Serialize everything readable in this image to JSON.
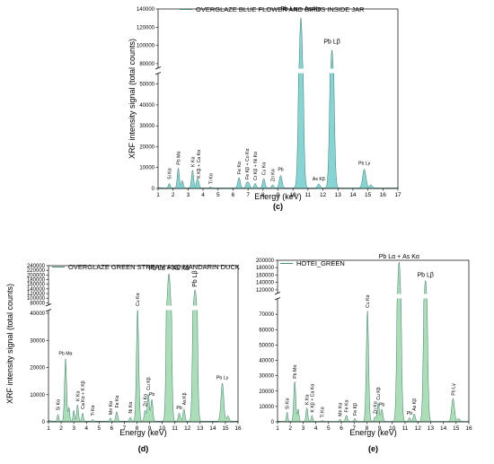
{
  "chart_data": [
    {
      "type": "area",
      "panel": "(c)",
      "legend": "OVERGLAZE BLUE FLOWER AND BIRDS INSIDE JAR",
      "xlabel": "Energy (keV)",
      "ylabel": "XRF intensity signal (total counts)",
      "color": "#5fc6c6",
      "xlim": [
        1,
        17
      ],
      "xticks": [
        1,
        2,
        3,
        4,
        5,
        6,
        7,
        8,
        9,
        10,
        11,
        12,
        13,
        14,
        15,
        16,
        17
      ],
      "ylim_lower": [
        0,
        55000
      ],
      "ylim_upper": [
        75000,
        140000
      ],
      "yticks_lower": [
        0,
        10000,
        20000,
        30000,
        40000,
        50000
      ],
      "yticks_upper": [
        80000,
        100000,
        120000,
        140000
      ],
      "peaks": [
        {
          "e": 1.75,
          "h": 2200,
          "w": 0.06
        },
        {
          "e": 2.35,
          "h": 9500,
          "w": 0.07
        },
        {
          "e": 2.62,
          "h": 3500,
          "w": 0.06
        },
        {
          "e": 3.3,
          "h": 8500,
          "w": 0.07
        },
        {
          "e": 3.6,
          "h": 3500,
          "w": 0.06
        },
        {
          "e": 3.7,
          "h": 2500,
          "w": 0.06
        },
        {
          "e": 4.5,
          "h": 500,
          "w": 0.06
        },
        {
          "e": 6.4,
          "h": 5000,
          "w": 0.08
        },
        {
          "e": 6.93,
          "h": 2500,
          "w": 0.08
        },
        {
          "e": 7.06,
          "h": 1800,
          "w": 0.07
        },
        {
          "e": 7.48,
          "h": 2200,
          "w": 0.07
        },
        {
          "e": 8.05,
          "h": 4500,
          "w": 0.08
        },
        {
          "e": 8.64,
          "h": 1500,
          "w": 0.07
        },
        {
          "e": 9.18,
          "h": 6000,
          "w": 0.09
        },
        {
          "e": 10.53,
          "h": 130000,
          "w": 0.12
        },
        {
          "e": 11.72,
          "h": 2000,
          "w": 0.09
        },
        {
          "e": 12.6,
          "h": 95000,
          "w": 0.12
        },
        {
          "e": 14.76,
          "h": 9000,
          "w": 0.11
        },
        {
          "e": 15.2,
          "h": 1500,
          "w": 0.09
        }
      ],
      "labels": [
        {
          "text": "Si Kα",
          "e": 1.75,
          "v": 3500,
          "rot": true
        },
        {
          "text": "Pb Mα",
          "e": 2.35,
          "v": 10500,
          "rot": true
        },
        {
          "text": "K Kα",
          "e": 3.3,
          "v": 9500,
          "rot": true
        },
        {
          "text": "K Kβ + Ca Kα",
          "e": 3.7,
          "v": 4000,
          "rot": true
        },
        {
          "text": "Ti Kα",
          "e": 4.5,
          "v": 1200,
          "rot": true
        },
        {
          "text": "Fe Kα",
          "e": 6.4,
          "v": 6000,
          "rot": true
        },
        {
          "text": "Fe Kβ + Co Kα",
          "e": 6.93,
          "v": 3500,
          "rot": true
        },
        {
          "text": "Cr Kβ + Ni Kα",
          "e": 7.48,
          "v": 3000,
          "rot": true
        },
        {
          "text": "Cu Kα",
          "e": 8.05,
          "v": 5500,
          "rot": true
        },
        {
          "text": "Zn Kα",
          "e": 8.64,
          "v": 2500,
          "rot": true
        },
        {
          "text": "Pb",
          "e": 9.18,
          "v": 7500,
          "rot": false
        },
        {
          "text": "Pb Lα + As Kα",
          "e": 10.53,
          "v": 136000,
          "rot": false,
          "big": true
        },
        {
          "text": "As Kβ",
          "e": 11.72,
          "v": 3000,
          "rot": false
        },
        {
          "text": "Pb Lβ",
          "e": 12.6,
          "v": 100000,
          "rot": false,
          "big": true
        },
        {
          "text": "Pb Lγ",
          "e": 14.76,
          "v": 10500,
          "rot": false
        }
      ]
    },
    {
      "type": "area",
      "panel": "(d)",
      "legend": "OVERGLAZE GREEN STREAM AND MANDARIN   DUCK",
      "xlabel": "Energy (keV)",
      "ylabel": "XRF intensity signal (total counts)",
      "color": "#8fd19e",
      "xlim": [
        1,
        16
      ],
      "xticks": [
        1,
        2,
        3,
        4,
        5,
        6,
        7,
        8,
        9,
        10,
        11,
        12,
        13,
        14,
        15,
        16
      ],
      "ylim_lower": [
        0,
        41000
      ],
      "ylim_upper": [
        70000,
        240000
      ],
      "yticks_lower": [
        0,
        10000,
        20000,
        30000,
        40000
      ],
      "yticks_upper": [
        80000,
        100000,
        120000,
        140000,
        160000,
        180000,
        200000,
        220000,
        240000
      ],
      "peaks": [
        {
          "e": 1.75,
          "h": 2500,
          "w": 0.06
        },
        {
          "e": 2.35,
          "h": 23000,
          "w": 0.08
        },
        {
          "e": 2.62,
          "h": 5000,
          "w": 0.06
        },
        {
          "e": 3.0,
          "h": 4000,
          "w": 0.06
        },
        {
          "e": 3.3,
          "h": 6000,
          "w": 0.07
        },
        {
          "e": 3.7,
          "h": 3000,
          "w": 0.06
        },
        {
          "e": 4.5,
          "h": 700,
          "w": 0.06
        },
        {
          "e": 5.9,
          "h": 1200,
          "w": 0.06
        },
        {
          "e": 6.4,
          "h": 3500,
          "w": 0.08
        },
        {
          "e": 7.48,
          "h": 1500,
          "w": 0.07
        },
        {
          "e": 8.05,
          "h": 41000,
          "w": 0.09
        },
        {
          "e": 8.64,
          "h": 4000,
          "w": 0.07
        },
        {
          "e": 8.9,
          "h": 10000,
          "w": 0.08
        },
        {
          "e": 9.18,
          "h": 8000,
          "w": 0.08
        },
        {
          "e": 10.53,
          "h": 205000,
          "w": 0.12
        },
        {
          "e": 11.35,
          "h": 3000,
          "w": 0.08
        },
        {
          "e": 11.72,
          "h": 4500,
          "w": 0.08
        },
        {
          "e": 12.6,
          "h": 135000,
          "w": 0.12
        },
        {
          "e": 14.76,
          "h": 14000,
          "w": 0.11
        },
        {
          "e": 15.2,
          "h": 2000,
          "w": 0.09
        }
      ],
      "labels": [
        {
          "text": "Si Kα",
          "e": 1.75,
          "v": 3500,
          "rot": true
        },
        {
          "text": "Pb Mα",
          "e": 2.35,
          "v": 24000,
          "rot": false
        },
        {
          "text": "K Kα",
          "e": 3.3,
          "v": 7000,
          "rot": true
        },
        {
          "text": "Ca Kα + K Kβ",
          "e": 3.7,
          "v": 4000,
          "rot": true
        },
        {
          "text": "Ti Kα",
          "e": 4.5,
          "v": 1500,
          "rot": true
        },
        {
          "text": "Mn Kα",
          "e": 5.9,
          "v": 2000,
          "rot": true
        },
        {
          "text": "Fe Kα",
          "e": 6.4,
          "v": 4500,
          "rot": true
        },
        {
          "text": "Ni Kα",
          "e": 7.48,
          "v": 2500,
          "rot": true
        },
        {
          "text": "Cu Kα",
          "e": 8.05,
          "v": 41500,
          "rot": true
        },
        {
          "text": "Zn Kα",
          "e": 8.64,
          "v": 5000,
          "rot": true
        },
        {
          "text": "Cu Kβ",
          "e": 8.9,
          "v": 11000,
          "rot": true
        },
        {
          "text": "Pb",
          "e": 9.18,
          "v": 9000,
          "rot": false
        },
        {
          "text": "Pb Lα + As Kα",
          "e": 10.53,
          "v": 212000,
          "rot": false,
          "big": true
        },
        {
          "text": "Pb",
          "e": 11.35,
          "v": 4000,
          "rot": false
        },
        {
          "text": "As Kβ",
          "e": 11.72,
          "v": 5500,
          "rot": true
        },
        {
          "text": "Pb Lβ",
          "e": 12.6,
          "v": 140000,
          "rot": true,
          "big": true
        },
        {
          "text": "Pb Lγ",
          "e": 14.76,
          "v": 15000,
          "rot": false
        }
      ]
    },
    {
      "type": "area",
      "panel": "(e)",
      "legend": "HOTEI_GREEN",
      "xlabel": "Energy (keV)",
      "ylabel": "",
      "color": "#8fd19e",
      "xlim": [
        1,
        16
      ],
      "xticks": [
        1,
        2,
        3,
        4,
        5,
        6,
        7,
        8,
        9,
        10,
        11,
        12,
        13,
        14,
        15,
        16
      ],
      "ylim_lower": [
        0,
        80000
      ],
      "ylim_upper": [
        110000,
        200000
      ],
      "yticks_lower": [
        0,
        10000,
        20000,
        30000,
        40000,
        50000,
        60000,
        70000
      ],
      "yticks_upper": [
        120000,
        140000,
        160000,
        180000,
        200000
      ],
      "peaks": [
        {
          "e": 1.75,
          "h": 6000,
          "w": 0.06
        },
        {
          "e": 2.35,
          "h": 26000,
          "w": 0.08
        },
        {
          "e": 2.62,
          "h": 8000,
          "w": 0.06
        },
        {
          "e": 3.3,
          "h": 9000,
          "w": 0.07
        },
        {
          "e": 3.7,
          "h": 4000,
          "w": 0.06
        },
        {
          "e": 4.5,
          "h": 800,
          "w": 0.06
        },
        {
          "e": 5.9,
          "h": 1500,
          "w": 0.06
        },
        {
          "e": 6.4,
          "h": 4000,
          "w": 0.08
        },
        {
          "e": 7.06,
          "h": 2000,
          "w": 0.07
        },
        {
          "e": 8.05,
          "h": 72000,
          "w": 0.09
        },
        {
          "e": 8.64,
          "h": 3000,
          "w": 0.07
        },
        {
          "e": 8.9,
          "h": 12000,
          "w": 0.08
        },
        {
          "e": 9.18,
          "h": 8000,
          "w": 0.08
        },
        {
          "e": 10.53,
          "h": 195000,
          "w": 0.12
        },
        {
          "e": 11.35,
          "h": 2500,
          "w": 0.08
        },
        {
          "e": 11.72,
          "h": 5000,
          "w": 0.08
        },
        {
          "e": 12.6,
          "h": 145000,
          "w": 0.12
        },
        {
          "e": 14.76,
          "h": 15000,
          "w": 0.11
        },
        {
          "e": 15.2,
          "h": 2000,
          "w": 0.09
        }
      ],
      "labels": [
        {
          "text": "Si Kα",
          "e": 1.75,
          "v": 7000,
          "rot": true
        },
        {
          "text": "Pb Mα",
          "e": 2.35,
          "v": 27000,
          "rot": true
        },
        {
          "text": "K Kα",
          "e": 3.3,
          "v": 10000,
          "rot": true
        },
        {
          "text": "K Kβ + Ca Kα",
          "e": 3.7,
          "v": 5000,
          "rot": true
        },
        {
          "text": "Ti Kα",
          "e": 4.5,
          "v": 1500,
          "rot": true
        },
        {
          "text": "Mn Kα",
          "e": 5.9,
          "v": 2500,
          "rot": true
        },
        {
          "text": "Fe Kα",
          "e": 6.4,
          "v": 5000,
          "rot": true
        },
        {
          "text": "Fe Kβ",
          "e": 7.06,
          "v": 3000,
          "rot": true
        },
        {
          "text": "Cu Kα",
          "e": 8.05,
          "v": 73000,
          "rot": true
        },
        {
          "text": "Zn Kα",
          "e": 8.64,
          "v": 4000,
          "rot": true
        },
        {
          "text": "Cu Kβ",
          "e": 8.9,
          "v": 13000,
          "rot": true
        },
        {
          "text": "Pb",
          "e": 9.18,
          "v": 9000,
          "rot": false
        },
        {
          "text": "Pb Lα + As Kα",
          "e": 10.53,
          "v": 200000,
          "rot": false,
          "big": true
        },
        {
          "text": "Pb",
          "e": 11.35,
          "v": 3500,
          "rot": false
        },
        {
          "text": "As Kβ",
          "e": 11.72,
          "v": 6000,
          "rot": true
        },
        {
          "text": "Pb Lβ",
          "e": 12.6,
          "v": 150000,
          "rot": false,
          "big": true
        },
        {
          "text": "Pb Lγ",
          "e": 14.76,
          "v": 16000,
          "rot": true
        }
      ]
    }
  ]
}
